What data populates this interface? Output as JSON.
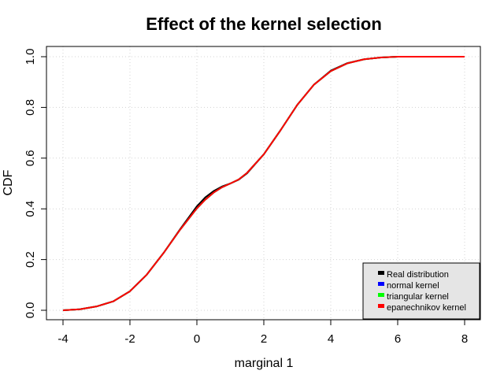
{
  "chart_data": {
    "type": "line",
    "title": "Effect of the kernel selection",
    "xlabel": "marginal 1",
    "ylabel": "CDF",
    "xlim": [
      -4,
      8
    ],
    "ylim": [
      0,
      1
    ],
    "x_ticks": [
      -4,
      -2,
      0,
      2,
      4,
      6,
      8
    ],
    "y_ticks": [
      0.0,
      0.2,
      0.4,
      0.6,
      0.8,
      1.0
    ],
    "x_tick_labels": [
      "-4",
      "-2",
      "0",
      "2",
      "4",
      "6",
      "8"
    ],
    "y_tick_labels": [
      "0.0",
      "0.2",
      "0.4",
      "0.6",
      "0.8",
      "1.0"
    ],
    "grid": true,
    "legend_position": "bottom-right",
    "series": [
      {
        "name": "Real distribution",
        "color": "#000000",
        "x": [
          -4,
          -3.5,
          -3,
          -2.5,
          -2,
          -1.5,
          -1,
          -0.5,
          0,
          0.25,
          0.5,
          0.75,
          1,
          1.25,
          1.5,
          2,
          2.5,
          3,
          3.5,
          4,
          4.5,
          5,
          5.5,
          6,
          7,
          8
        ],
        "y": [
          0.0,
          0.004,
          0.015,
          0.035,
          0.075,
          0.14,
          0.225,
          0.32,
          0.41,
          0.445,
          0.47,
          0.488,
          0.5,
          0.515,
          0.54,
          0.615,
          0.71,
          0.81,
          0.89,
          0.945,
          0.975,
          0.99,
          0.997,
          1.0,
          1.0,
          1.0
        ]
      },
      {
        "name": "normal kernel",
        "color": "#0000ff",
        "x": [
          -4,
          -3.5,
          -3,
          -2.5,
          -2,
          -1.5,
          -1,
          -0.5,
          0,
          0.25,
          0.5,
          0.75,
          1,
          1.25,
          1.5,
          2,
          2.5,
          3,
          3.5,
          4,
          4.5,
          5,
          5.5,
          6,
          7,
          8
        ],
        "y": [
          0.0,
          0.004,
          0.015,
          0.035,
          0.075,
          0.14,
          0.225,
          0.318,
          0.402,
          0.436,
          0.464,
          0.485,
          0.5,
          0.516,
          0.542,
          0.615,
          0.71,
          0.81,
          0.89,
          0.943,
          0.974,
          0.99,
          0.997,
          1.0,
          1.0,
          1.0
        ]
      },
      {
        "name": "triangular kernel",
        "color": "#00ff00",
        "x": [
          -4,
          -3.5,
          -3,
          -2.5,
          -2,
          -1.5,
          -1,
          -0.5,
          0,
          0.25,
          0.5,
          0.75,
          1,
          1.25,
          1.5,
          2,
          2.5,
          3,
          3.5,
          4,
          4.5,
          5,
          5.5,
          6,
          7,
          8
        ],
        "y": [
          0.0,
          0.004,
          0.015,
          0.035,
          0.075,
          0.14,
          0.225,
          0.318,
          0.402,
          0.436,
          0.464,
          0.485,
          0.5,
          0.516,
          0.542,
          0.615,
          0.71,
          0.81,
          0.89,
          0.943,
          0.974,
          0.99,
          0.997,
          1.0,
          1.0,
          1.0
        ]
      },
      {
        "name": "epanechnikov kernel",
        "color": "#ff0000",
        "x": [
          -4,
          -3.5,
          -3,
          -2.5,
          -2,
          -1.5,
          -1,
          -0.5,
          0,
          0.25,
          0.5,
          0.75,
          1,
          1.25,
          1.5,
          2,
          2.5,
          3,
          3.5,
          4,
          4.5,
          5,
          5.5,
          6,
          7,
          8
        ],
        "y": [
          0.0,
          0.004,
          0.015,
          0.035,
          0.075,
          0.14,
          0.225,
          0.318,
          0.402,
          0.436,
          0.464,
          0.485,
          0.5,
          0.516,
          0.542,
          0.615,
          0.71,
          0.81,
          0.89,
          0.943,
          0.974,
          0.99,
          0.997,
          1.0,
          1.0,
          1.0
        ]
      }
    ]
  }
}
